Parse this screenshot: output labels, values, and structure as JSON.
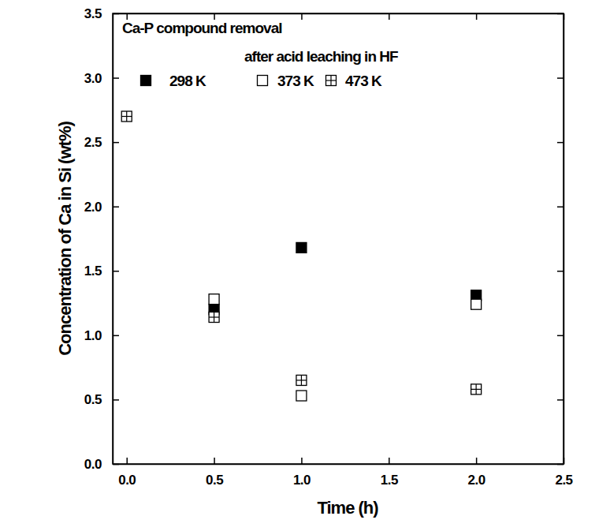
{
  "chart_data": {
    "type": "scatter",
    "title": "Ca-P compound removal",
    "subtitle": "after acid leaching in HF",
    "x_label": "Time (h)",
    "y_label": "Concentration of Ca in Si (wt%)",
    "xlim": [
      -0.08,
      2.5
    ],
    "ylim": [
      0,
      3.5
    ],
    "xticks": [
      {
        "value": 0,
        "label": "0.0"
      },
      {
        "value": 0.5,
        "label": "0.5"
      },
      {
        "value": 1,
        "label": "1.0"
      },
      {
        "value": 1.5,
        "label": "1.5"
      },
      {
        "value": 2,
        "label": "2.0"
      },
      {
        "value": 2.5,
        "label": "2.5"
      }
    ],
    "yticks": [
      {
        "value": 0,
        "label": "0.0"
      },
      {
        "value": 0.5,
        "label": "0.5"
      },
      {
        "value": 1,
        "label": "1.0"
      },
      {
        "value": 1.5,
        "label": "1.5"
      },
      {
        "value": 2,
        "label": "2.0"
      },
      {
        "value": 2.5,
        "label": "2.5"
      },
      {
        "value": 3,
        "label": "3.0"
      },
      {
        "value": 3.5,
        "label": "3.5"
      }
    ],
    "legend": "top",
    "series": [
      {
        "name": "298 K",
        "color": "#000000",
        "marker": "filled_square",
        "x": [
          0.5,
          1,
          2
        ],
        "values": [
          1.2,
          1.68,
          1.31
        ]
      },
      {
        "name": "373 K",
        "color": "#000000",
        "marker": "open_square",
        "x": [
          0.5,
          1,
          2
        ],
        "values": [
          1.28,
          0.53,
          1.24
        ]
      },
      {
        "name": "473 K",
        "color": "#000000",
        "marker": "crossed_square",
        "x": [
          0,
          0.5,
          1,
          2
        ],
        "values": [
          2.7,
          1.14,
          0.65,
          0.58
        ]
      }
    ]
  }
}
